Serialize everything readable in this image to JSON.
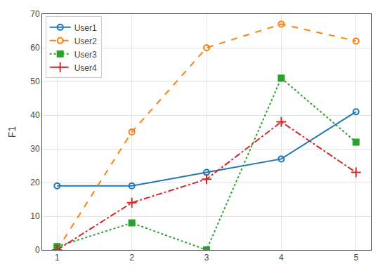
{
  "chart_data": {
    "type": "line",
    "x": [
      1,
      2,
      3,
      4,
      5
    ],
    "series": [
      {
        "name": "User1",
        "color": "#1f77b4",
        "values": [
          19,
          19,
          23,
          27,
          41
        ],
        "marker": "circle-open",
        "line_style": "solid"
      },
      {
        "name": "User2",
        "color": "#ff7f0e",
        "values": [
          0,
          35,
          60,
          67,
          62
        ],
        "marker": "circle-open",
        "line_style": "dashed"
      },
      {
        "name": "User3",
        "color": "#2ca02c",
        "values": [
          1,
          8,
          0,
          51,
          32
        ],
        "marker": "square",
        "line_style": "dotted"
      },
      {
        "name": "User4",
        "color": "#d62728",
        "values": [
          0,
          14,
          21,
          38,
          23
        ],
        "marker": "plus",
        "line_style": "dashdot"
      }
    ],
    "ylabel": "F1",
    "xlim": [
      0.8,
      5.2
    ],
    "xticks": [
      1,
      2,
      3,
      4,
      5
    ],
    "ylim": [
      0,
      70
    ],
    "yticks": [
      0,
      10,
      20,
      30,
      40,
      50,
      60,
      70
    ],
    "grid": true,
    "legend": "upper left"
  }
}
